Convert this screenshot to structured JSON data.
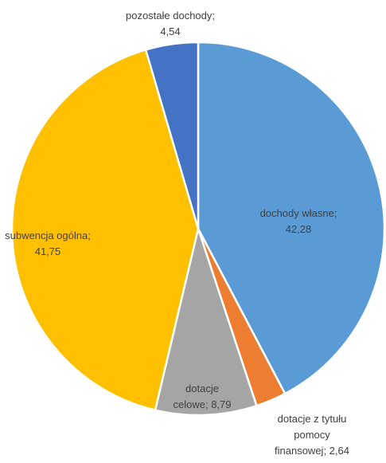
{
  "chart_data": {
    "type": "pie",
    "title": "",
    "start_angle_deg": 0,
    "direction": "clockwise",
    "slices": [
      {
        "label": "dochody własne",
        "value": 42.28,
        "display_lines": [
          "dochody własne;",
          "42,28"
        ],
        "color": "#5B9BD5",
        "text_color": "#404040"
      },
      {
        "label": "dotacje z tytułu pomocy finansowej",
        "value": 2.64,
        "display_lines": [
          "dotacje z tytułu",
          "pomocy",
          "finansowej; 2,64"
        ],
        "color": "#ED7D31",
        "text_color": "#404040"
      },
      {
        "label": "dotacje celowe",
        "value": 8.79,
        "display_lines": [
          "dotacje",
          "celowe; 8,79"
        ],
        "color": "#A5A5A5",
        "text_color": "#404040"
      },
      {
        "label": "subwencja ogólna",
        "value": 41.75,
        "display_lines": [
          "subwencja ogólna;",
          "41,75"
        ],
        "color": "#FFC000",
        "text_color": "#404040"
      },
      {
        "label": "pozostałe dochody",
        "value": 4.54,
        "display_lines": [
          "pozostałe dochody;",
          "4,54"
        ],
        "color": "#4472C4",
        "text_color": "#404040"
      }
    ]
  }
}
